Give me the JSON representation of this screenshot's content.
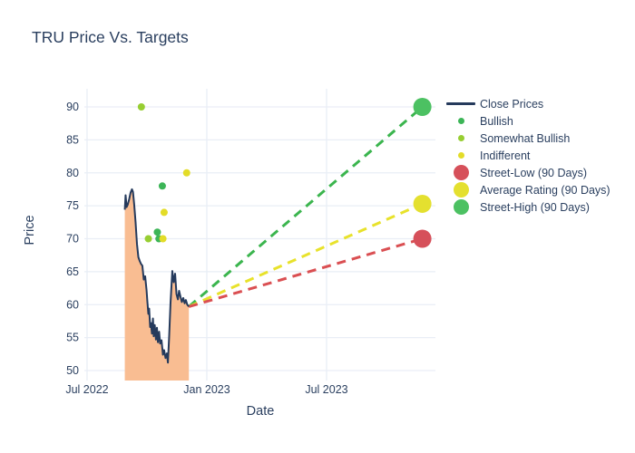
{
  "title": "TRU Price Vs. Targets",
  "colors": {
    "text": "#2a3f5f",
    "grid": "#e9eef6",
    "close_line": "#253a5c",
    "close_fill": "#f9bd92",
    "bullish": "#3cb557",
    "somewhat_bullish": "#97ce32",
    "indifferent": "#e3dc28",
    "street_low": "#d6505a",
    "average_rating": "#e4e02f",
    "street_high": "#4cc162",
    "background": "#ffffff"
  },
  "legend": {
    "items": [
      {
        "label": "Close Prices",
        "symbol": "line",
        "color": "#253a5c"
      },
      {
        "label": "Bullish",
        "symbol": "dot",
        "color": "#3cb557"
      },
      {
        "label": "Somewhat Bullish",
        "symbol": "dot",
        "color": "#97ce32"
      },
      {
        "label": "Indifferent",
        "symbol": "dot",
        "color": "#e3dc28"
      },
      {
        "label": "Street-Low (90 Days)",
        "symbol": "circle",
        "color": "#d6505a"
      },
      {
        "label": "Average Rating (90 Days)",
        "symbol": "circle",
        "color": "#e4e02f"
      },
      {
        "label": "Street-High (90 Days)",
        "symbol": "circle",
        "color": "#4cc162"
      }
    ]
  },
  "chart_data": {
    "type": "line",
    "title": "TRU Price Vs. Targets",
    "xlabel": "Date",
    "ylabel": "Price",
    "x_unit": "months_since_Jul_2022",
    "x_ticks": [
      {
        "label": "Jul 2022",
        "m": 0
      },
      {
        "label": "Jan 2023",
        "m": 6
      },
      {
        "label": "Jul 2023",
        "m": 12
      }
    ],
    "y_ticks": [
      50,
      55,
      60,
      65,
      70,
      75,
      80,
      85,
      90
    ],
    "ylim": [
      48.5,
      92.7
    ],
    "xlim_months": [
      -0.15,
      17.5
    ],
    "grid": true,
    "legend_position": "right",
    "close_prices": {
      "x": [
        1.89,
        1.93,
        1.98,
        2.04,
        2.11,
        2.18,
        2.25,
        2.3,
        2.36,
        2.43,
        2.5,
        2.57,
        2.64,
        2.7,
        2.77,
        2.84,
        2.91,
        2.98,
        3.02,
        3.07,
        3.11,
        3.16,
        3.2,
        3.25,
        3.3,
        3.34,
        3.39,
        3.45,
        3.5,
        3.55,
        3.61,
        3.66,
        3.73,
        3.8,
        3.86,
        3.93,
        4.0,
        4.05,
        4.11,
        4.18,
        4.27,
        4.34,
        4.41,
        4.48,
        4.55,
        4.61,
        4.68,
        4.75,
        4.82,
        4.89,
        4.95,
        5.02,
        5.1
      ],
      "y": [
        74.4,
        76.6,
        74.8,
        75.2,
        76.0,
        77.0,
        77.5,
        77.1,
        75.2,
        72.5,
        69.2,
        67.2,
        66.6,
        66.2,
        65.9,
        63.8,
        64.3,
        62.2,
        60.5,
        58.6,
        59.4,
        56.6,
        57.2,
        55.6,
        57.9,
        55.2,
        56.9,
        54.7,
        56.5,
        54.3,
        55.9,
        54.1,
        54.6,
        52.4,
        53.1,
        51.9,
        52.6,
        51.2,
        55.0,
        60.2,
        65.1,
        63.4,
        64.7,
        61.6,
        60.8,
        62.1,
        61.2,
        60.4,
        61.0,
        60.2,
        60.7,
        60.0,
        59.7
      ]
    },
    "ratings": {
      "bullish": {
        "points": [
          [
            3.52,
            71
          ],
          [
            3.6,
            70
          ],
          [
            3.77,
            78
          ]
        ],
        "color": "#3cb557"
      },
      "somewhat_bullish": {
        "points": [
          [
            2.72,
            90
          ],
          [
            3.07,
            70
          ]
        ],
        "color": "#97ce32"
      },
      "indifferent": {
        "points": [
          [
            3.8,
            70
          ],
          [
            3.86,
            74
          ],
          [
            4.99,
            80
          ]
        ],
        "color": "#e3dc28"
      }
    },
    "targets": {
      "x": 16.8,
      "projection_origin": [
        5.1,
        59.7
      ],
      "street_low": {
        "value": 70,
        "color": "#d6505a",
        "dash_color": "#da4f52"
      },
      "average_rating": {
        "value": 75.3,
        "color": "#e4e02f",
        "dash_color": "#e8e22b"
      },
      "street_high": {
        "value": 90,
        "color": "#4cc162",
        "dash_color": "#3bb54e"
      }
    }
  }
}
